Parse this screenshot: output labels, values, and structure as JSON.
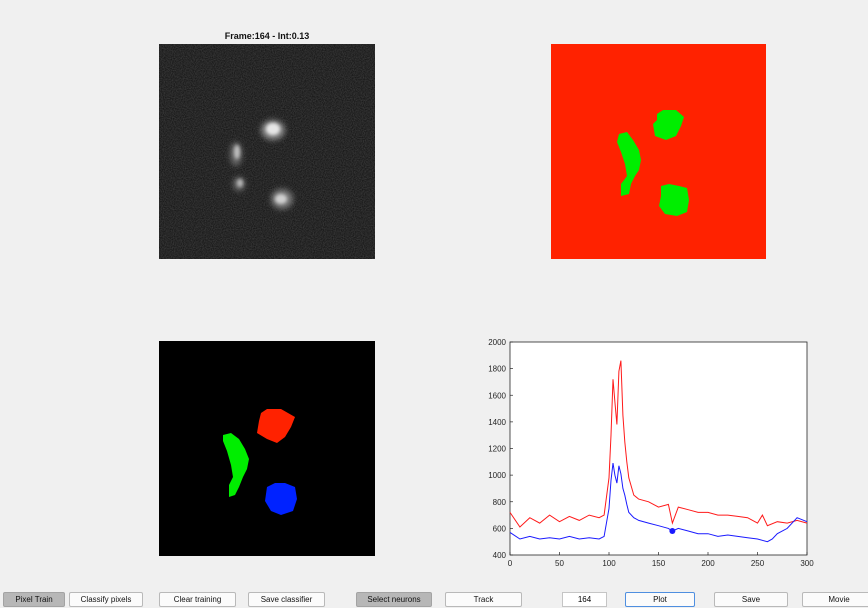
{
  "title": "Frame:164 - Int:0.13",
  "toolbar": {
    "pixel_train": "Pixel Train",
    "classify_pixels": "Classify pixels",
    "clear_training": "Clear training",
    "save_classifier": "Save classifier",
    "select_neurons": "Select neurons",
    "track": "Track",
    "frame_value": "164",
    "plot": "Plot",
    "save": "Save",
    "movie": "Movie"
  },
  "colors": {
    "background_class": "#ff2200",
    "foreground_class": "#00ee00",
    "neuron_red": "#ff2200",
    "neuron_green": "#00ee00",
    "neuron_blue": "#0022ff",
    "trace_red": "#ff1a1a",
    "trace_blue": "#1a1aff"
  },
  "icons": [
    "microscopy-frame-image",
    "pixel-classification-map",
    "neuron-label-map",
    "intensity-trace-plot"
  ],
  "chart_data": {
    "type": "line",
    "xlim": [
      0,
      300
    ],
    "ylim": [
      400,
      2000
    ],
    "xticks": [
      "0",
      "50",
      "100",
      "150",
      "200",
      "250",
      "300"
    ],
    "yticks": [
      "400",
      "600",
      "800",
      "1000",
      "1200",
      "1400",
      "1600",
      "1800",
      "2000"
    ],
    "series": [
      {
        "color": "#ff1a1a",
        "x": [
          0,
          10,
          20,
          30,
          40,
          50,
          60,
          70,
          80,
          90,
          95,
          100,
          102,
          104,
          106,
          108,
          110,
          112,
          114,
          116,
          118,
          120,
          125,
          130,
          140,
          150,
          160,
          164,
          170,
          180,
          190,
          200,
          210,
          220,
          230,
          240,
          250,
          255,
          260,
          270,
          280,
          290,
          300
        ],
        "y": [
          720,
          610,
          680,
          640,
          700,
          650,
          690,
          660,
          700,
          680,
          700,
          980,
          1300,
          1720,
          1550,
          1380,
          1780,
          1860,
          1450,
          1250,
          1100,
          980,
          850,
          820,
          800,
          760,
          780,
          640,
          760,
          740,
          720,
          720,
          700,
          700,
          690,
          680,
          640,
          700,
          620,
          650,
          640,
          660,
          640
        ]
      },
      {
        "color": "#1a1aff",
        "x": [
          0,
          10,
          20,
          30,
          40,
          50,
          60,
          70,
          80,
          90,
          95,
          100,
          102,
          104,
          106,
          108,
          110,
          112,
          114,
          116,
          118,
          120,
          125,
          130,
          140,
          150,
          160,
          164,
          170,
          180,
          190,
          200,
          210,
          220,
          230,
          240,
          250,
          260,
          265,
          270,
          280,
          290,
          300
        ],
        "y": [
          570,
          520,
          540,
          520,
          530,
          520,
          540,
          520,
          530,
          520,
          540,
          750,
          960,
          1090,
          1000,
          940,
          1070,
          1010,
          900,
          850,
          780,
          720,
          680,
          660,
          640,
          620,
          600,
          580,
          600,
          580,
          560,
          560,
          540,
          550,
          540,
          530,
          520,
          500,
          520,
          560,
          600,
          680,
          650
        ]
      }
    ],
    "marker": {
      "x": 164,
      "y": 580,
      "color": "#1a1aff"
    }
  }
}
